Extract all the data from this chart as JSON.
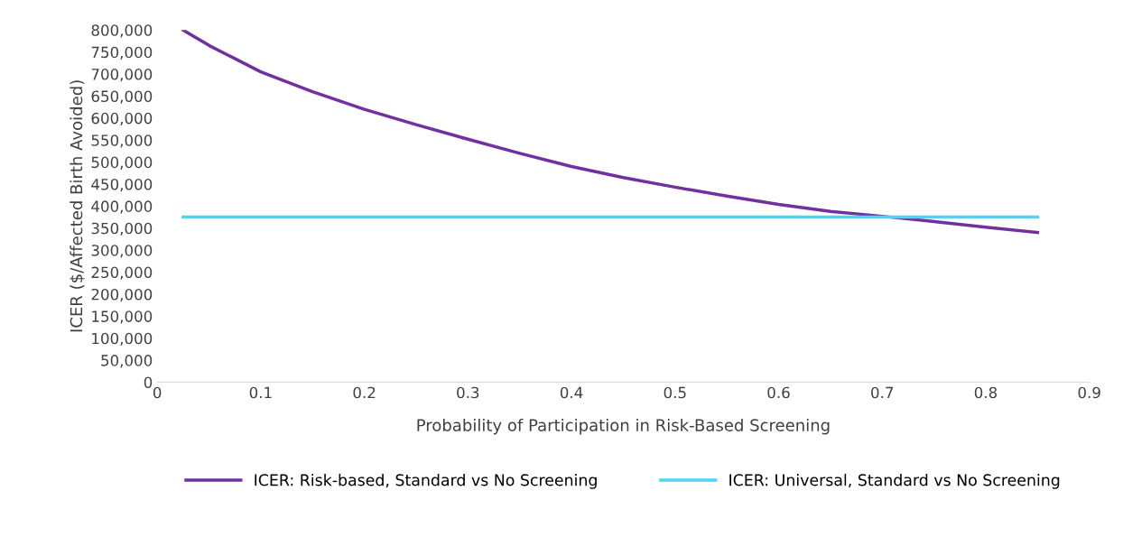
{
  "chart_data": {
    "type": "line",
    "xlabel": "Probability of Participation in Risk-Based Screening",
    "ylabel": "ICER ($/Affected Birth Avoided)",
    "series": [
      {
        "name": "ICER: Risk-based, Standard vs No Screening",
        "color": "#7030a0",
        "x": [
          0.025,
          0.05,
          0.1,
          0.15,
          0.2,
          0.25,
          0.3,
          0.35,
          0.4,
          0.45,
          0.5,
          0.55,
          0.6,
          0.65,
          0.7,
          0.75,
          0.8,
          0.85
        ],
        "values": [
          800000,
          765000,
          705000,
          660000,
          620000,
          585000,
          552000,
          520000,
          490000,
          465000,
          443000,
          423000,
          404000,
          388000,
          377000,
          365000,
          352000,
          340000
        ]
      },
      {
        "name": "ICER: Universal, Standard vs No Screening",
        "color": "#4dd5f7",
        "x": [
          0.025,
          0.85
        ],
        "values": [
          375000,
          375000
        ]
      }
    ],
    "xlim": [
      0,
      0.9
    ],
    "xticks": [
      0,
      0.1,
      0.2,
      0.3,
      0.4,
      0.5,
      0.6,
      0.7,
      0.8,
      0.9
    ],
    "ylim": [
      0,
      800000
    ],
    "yticks": [
      0,
      {
        "value": 50000,
        "label": "50,000"
      },
      {
        "value": 100000,
        "label": "100,000"
      },
      {
        "value": 150000,
        "label": "150,000"
      },
      {
        "value": 200000,
        "label": "200,000"
      },
      {
        "value": 250000,
        "label": "250,000"
      },
      {
        "value": 300000,
        "label": "300,000"
      },
      {
        "value": 350000,
        "label": "350,000"
      },
      {
        "value": 400000,
        "label": "400,000"
      },
      {
        "value": 450000,
        "label": "450,000"
      },
      {
        "value": 500000,
        "label": "500,000"
      },
      {
        "value": 550000,
        "label": "550,000"
      },
      {
        "value": 600000,
        "label": "600,000"
      },
      {
        "value": 650000,
        "label": "650,000"
      },
      {
        "value": 700000,
        "label": "700,000"
      },
      {
        "value": 750000,
        "label": "750,000"
      },
      {
        "value": 800000,
        "label": "800,000"
      }
    ],
    "grid": false,
    "legend": "bottom",
    "marker": "none",
    "line_style": "solid"
  }
}
